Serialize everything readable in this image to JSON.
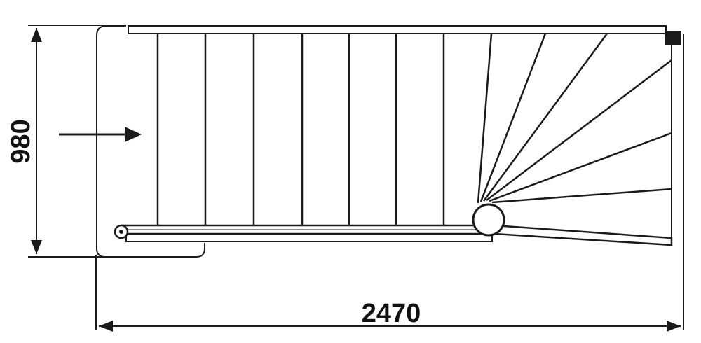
{
  "drawing": {
    "width_label": "2470",
    "depth_label": "980"
  },
  "colors": {
    "line": "#1a1a1a",
    "background": "#ffffff"
  },
  "icons": {
    "direction": "arrow-right-icon",
    "newel": "newel-post-icon",
    "handrail_end": "handrail-end-cap-icon"
  }
}
